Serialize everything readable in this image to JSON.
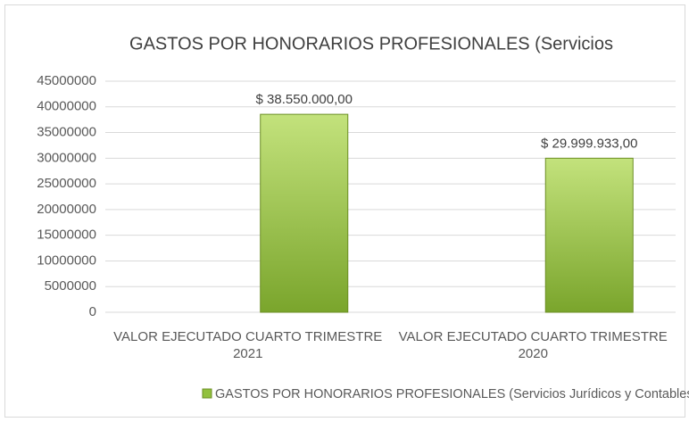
{
  "chart_data": {
    "type": "bar",
    "title": "GASTOS POR HONORARIOS PROFESIONALES (Servicios",
    "categories": [
      "VALOR EJECUTADO CUARTO TRIMESTRE 2021",
      "VALOR EJECUTADO CUARTO TRIMESTRE 2020"
    ],
    "series": [
      {
        "name": "GASTOS POR HONORARIOS PROFESIONALES (Servicios Jurídicos y Contables)",
        "color": "#92c13e",
        "values": [
          38550000,
          29999933
        ],
        "value_labels": [
          "$ 38.550.000,00",
          "$ 29.999.933,00"
        ]
      }
    ],
    "ylim": [
      0,
      45000000
    ],
    "yticks": [
      0,
      5000000,
      10000000,
      15000000,
      20000000,
      25000000,
      30000000,
      35000000,
      40000000,
      45000000
    ],
    "grid": true,
    "legend": "bottom"
  }
}
